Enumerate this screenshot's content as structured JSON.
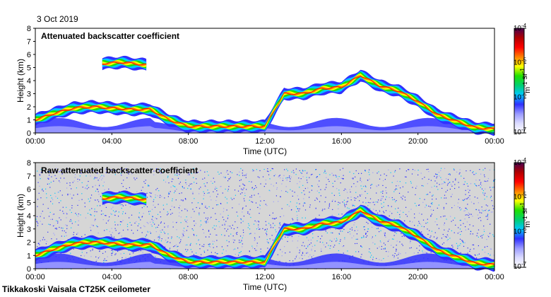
{
  "date": "3 Oct 2019",
  "footer": "Tikkakoski Vaisala CT25K ceilometer",
  "colors": {
    "raw_background": "#d6d6d6",
    "colormap": [
      "#ffffff",
      "#dcdcff",
      "#9b9bff",
      "#3030ff",
      "#00c8ff",
      "#00d070",
      "#20e000",
      "#ffff00",
      "#ff8000",
      "#ff0000",
      "#b00000",
      "#4a0050"
    ]
  },
  "chart_data": [
    {
      "type": "heatmap",
      "title": "Attenuated backscatter coefficient",
      "xlabel": "Time (UTC)",
      "ylabel": "Height (km)",
      "x_ticks": [
        "00:00",
        "04:00",
        "08:00",
        "12:00",
        "16:00",
        "20:00",
        "00:00"
      ],
      "y_ticks": [
        "0",
        "1",
        "2",
        "3",
        "4",
        "5",
        "6",
        "7",
        "8"
      ],
      "xlim": [
        0,
        24
      ],
      "ylim": [
        0,
        8
      ],
      "grid": false,
      "colorbar": {
        "scale": "log",
        "range": [
          1e-07,
          0.0001
        ],
        "tick_labels": [
          "10-7",
          "10-6",
          "10-5",
          "10-4"
        ],
        "label": "m-1 sr-1"
      },
      "layers": [
        {
          "name": "cloud-layer",
          "points": [
            [
              0.0,
              1.0
            ],
            [
              1.0,
              1.5
            ],
            [
              2.0,
              1.9
            ],
            [
              3.0,
              2.0
            ],
            [
              4.0,
              1.9
            ],
            [
              5.0,
              1.8
            ],
            [
              6.0,
              1.8
            ],
            [
              7.0,
              1.0
            ],
            [
              8.0,
              0.5
            ],
            [
              10.0,
              0.5
            ],
            [
              12.0,
              0.5
            ],
            [
              13.0,
              3.0
            ],
            [
              14.0,
              3.0
            ],
            [
              15.0,
              3.4
            ],
            [
              16.0,
              3.5
            ],
            [
              17.0,
              4.4
            ],
            [
              18.0,
              3.6
            ],
            [
              19.0,
              3.2
            ],
            [
              20.0,
              2.4
            ],
            [
              21.0,
              1.4
            ],
            [
              22.0,
              0.9
            ],
            [
              23.0,
              0.4
            ],
            [
              24.0,
              0.3
            ]
          ]
        },
        {
          "name": "upper-cloud",
          "points": [
            [
              3.5,
              5.3
            ],
            [
              4.5,
              5.4
            ],
            [
              5.8,
              5.2
            ]
          ]
        }
      ]
    },
    {
      "type": "heatmap",
      "title": "Raw attenuated backscatter coefficient",
      "xlabel": "Time (UTC)",
      "ylabel": "Height (km)",
      "x_ticks": [
        "00:00",
        "04:00",
        "08:00",
        "12:00",
        "16:00",
        "20:00",
        "00:00"
      ],
      "y_ticks": [
        "0",
        "1",
        "2",
        "3",
        "4",
        "5",
        "6",
        "7",
        "8"
      ],
      "xlim": [
        0,
        24
      ],
      "ylim": [
        0,
        8
      ],
      "grid": false,
      "colorbar": {
        "scale": "log",
        "range": [
          1e-07,
          0.0001
        ],
        "tick_labels": [
          "10-7",
          "10-6",
          "10-5",
          "10-4"
        ],
        "label": "m-1 sr-1"
      },
      "layers": [
        {
          "name": "cloud-layer",
          "points": [
            [
              0.0,
              1.0
            ],
            [
              1.0,
              1.5
            ],
            [
              2.0,
              1.9
            ],
            [
              3.0,
              2.0
            ],
            [
              4.0,
              1.9
            ],
            [
              5.0,
              1.8
            ],
            [
              6.0,
              1.8
            ],
            [
              7.0,
              1.0
            ],
            [
              8.0,
              0.5
            ],
            [
              10.0,
              0.5
            ],
            [
              12.0,
              0.5
            ],
            [
              13.0,
              3.0
            ],
            [
              14.0,
              3.0
            ],
            [
              15.0,
              3.4
            ],
            [
              16.0,
              3.5
            ],
            [
              17.0,
              4.4
            ],
            [
              18.0,
              3.6
            ],
            [
              19.0,
              3.2
            ],
            [
              20.0,
              2.4
            ],
            [
              21.0,
              1.4
            ],
            [
              22.0,
              0.9
            ],
            [
              23.0,
              0.4
            ],
            [
              24.0,
              0.3
            ]
          ]
        },
        {
          "name": "upper-cloud",
          "points": [
            [
              3.5,
              5.3
            ],
            [
              4.5,
              5.4
            ],
            [
              5.8,
              5.2
            ]
          ]
        }
      ]
    }
  ]
}
